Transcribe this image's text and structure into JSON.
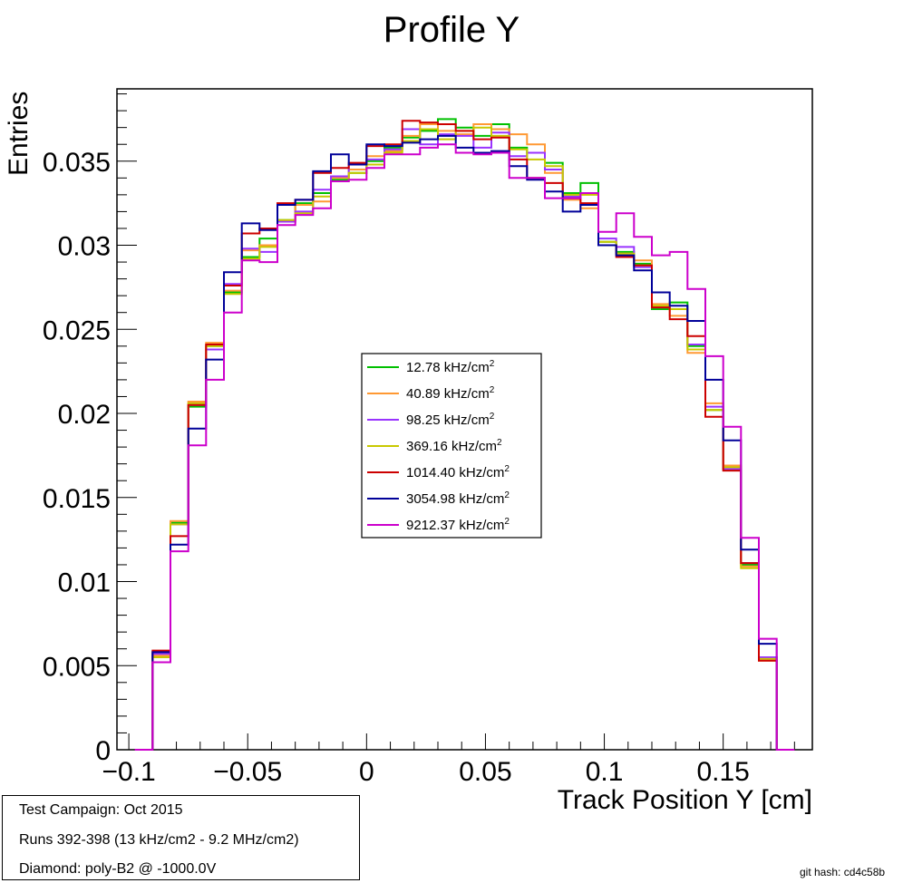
{
  "chart_data": {
    "type": "line",
    "title": "Profile Y",
    "xlabel": "Track Position Y [cm]",
    "ylabel": "Entries",
    "xlim": [
      -0.105,
      0.1875
    ],
    "ylim": [
      0,
      0.0393
    ],
    "x_ticks": [
      -0.1,
      -0.05,
      0,
      0.05,
      0.1,
      0.15
    ],
    "x_tick_labels": [
      "−0.1",
      "−0.05",
      "0",
      "0.05",
      "0.1",
      "0.15"
    ],
    "y_ticks": [
      0,
      0.005,
      0.01,
      0.015,
      0.02,
      0.025,
      0.03,
      0.035
    ],
    "y_tick_labels": [
      "0",
      "0.005",
      "0.01",
      "0.015",
      "0.02",
      "0.025",
      "0.03",
      "0.035"
    ],
    "legend_position": "center",
    "grid": false,
    "bin_edges": [
      -0.0975,
      -0.09,
      -0.0825,
      -0.075,
      -0.0675,
      -0.06,
      -0.0525,
      -0.045,
      -0.0375,
      -0.03,
      -0.0225,
      -0.015,
      -0.0075,
      0,
      0.0075,
      0.015,
      0.0225,
      0.03,
      0.0375,
      0.045,
      0.0525,
      0.06,
      0.0675,
      0.075,
      0.0825,
      0.09,
      0.0975,
      0.105,
      0.1125,
      0.12,
      0.1275,
      0.135,
      0.1425,
      0.15,
      0.1575,
      0.165,
      0.1725,
      0.18
    ],
    "series": [
      {
        "name": "12.78 kHz/cm",
        "name_sup": "2",
        "color": "#00c000",
        "values": [
          0,
          0.0058,
          0.0135,
          0.0204,
          0.024,
          0.0272,
          0.0293,
          0.0304,
          0.0315,
          0.0325,
          0.0331,
          0.0339,
          0.0343,
          0.035,
          0.0358,
          0.0364,
          0.0368,
          0.0375,
          0.037,
          0.0365,
          0.0372,
          0.0358,
          0.0355,
          0.0349,
          0.0331,
          0.0337,
          0.0302,
          0.0296,
          0.0289,
          0.0262,
          0.0266,
          0.024,
          0.0202,
          0.0167,
          0.011,
          0.0055,
          0
        ]
      },
      {
        "name": "40.89 kHz/cm",
        "name_sup": "2",
        "color": "#ff9933",
        "values": [
          0,
          0.0056,
          0.0136,
          0.0207,
          0.0242,
          0.0273,
          0.0297,
          0.03,
          0.0314,
          0.0324,
          0.0326,
          0.034,
          0.0345,
          0.0353,
          0.0356,
          0.0365,
          0.0372,
          0.0368,
          0.0366,
          0.0372,
          0.0369,
          0.0366,
          0.036,
          0.0343,
          0.0327,
          0.0322,
          0.03,
          0.0295,
          0.0291,
          0.0265,
          0.0258,
          0.0236,
          0.0206,
          0.0169,
          0.0109,
          0.0053,
          0
        ]
      },
      {
        "name": "98.25 kHz/cm",
        "name_sup": "2",
        "color": "#9933ff",
        "values": [
          0,
          0.0057,
          0.0134,
          0.0205,
          0.0238,
          0.0277,
          0.0298,
          0.0296,
          0.0314,
          0.032,
          0.0333,
          0.0341,
          0.0348,
          0.0351,
          0.0357,
          0.0369,
          0.036,
          0.0366,
          0.0365,
          0.0358,
          0.0367,
          0.0353,
          0.0355,
          0.0345,
          0.0329,
          0.0331,
          0.0304,
          0.0299,
          0.0287,
          0.0263,
          0.0262,
          0.0241,
          0.0204,
          0.0167,
          0.0111,
          0.0055,
          0
        ]
      },
      {
        "name": "369.16 kHz/cm",
        "name_sup": "2",
        "color": "#c8c800",
        "values": [
          0,
          0.0055,
          0.0134,
          0.0206,
          0.024,
          0.0271,
          0.0292,
          0.0299,
          0.0315,
          0.0319,
          0.0329,
          0.0338,
          0.0343,
          0.0348,
          0.0355,
          0.0362,
          0.0369,
          0.0363,
          0.0368,
          0.037,
          0.0365,
          0.0357,
          0.0351,
          0.0347,
          0.033,
          0.033,
          0.0302,
          0.0295,
          0.0288,
          0.0264,
          0.0262,
          0.0238,
          0.0202,
          0.0168,
          0.0108,
          0.0054,
          0
        ]
      },
      {
        "name": "1014.40 kHz/cm",
        "name_sup": "2",
        "color": "#cc0000",
        "values": [
          0,
          0.0059,
          0.0127,
          0.0205,
          0.0241,
          0.0276,
          0.0307,
          0.031,
          0.0325,
          0.0327,
          0.0343,
          0.0346,
          0.0349,
          0.0359,
          0.036,
          0.0374,
          0.0373,
          0.0372,
          0.0368,
          0.0363,
          0.0364,
          0.0351,
          0.034,
          0.0337,
          0.0328,
          0.0325,
          0.03,
          0.0293,
          0.0288,
          0.0263,
          0.0256,
          0.0246,
          0.0198,
          0.0166,
          0.0111,
          0.0053,
          0
        ]
      },
      {
        "name": "3054.98 kHz/cm",
        "name_sup": "2",
        "color": "#000099",
        "values": [
          0,
          0.0058,
          0.0122,
          0.0191,
          0.0232,
          0.0284,
          0.0313,
          0.0309,
          0.0324,
          0.0327,
          0.0344,
          0.0354,
          0.0348,
          0.036,
          0.0359,
          0.0361,
          0.0363,
          0.0365,
          0.0358,
          0.0355,
          0.0356,
          0.0347,
          0.0339,
          0.0332,
          0.032,
          0.0324,
          0.03,
          0.0294,
          0.0285,
          0.0272,
          0.0264,
          0.0255,
          0.022,
          0.0184,
          0.0119,
          0.0063,
          0
        ]
      },
      {
        "name": "9212.37 kHz/cm",
        "name_sup": "2",
        "color": "#cc00cc",
        "values": [
          0,
          0.0052,
          0.0118,
          0.0181,
          0.022,
          0.026,
          0.0291,
          0.029,
          0.0312,
          0.0318,
          0.0322,
          0.0338,
          0.0339,
          0.0346,
          0.0354,
          0.0354,
          0.0358,
          0.036,
          0.0355,
          0.0354,
          0.0355,
          0.034,
          0.034,
          0.0328,
          0.0328,
          0.0331,
          0.0308,
          0.0319,
          0.0305,
          0.0294,
          0.0296,
          0.0274,
          0.0234,
          0.0192,
          0.0126,
          0.0066,
          0
        ]
      }
    ]
  },
  "info_box": {
    "line1": "Test Campaign: Oct 2015",
    "line2": "Runs 392-398 (13 kHz/cm2 - 9.2 MHz/cm2)",
    "line3": "Diamond: poly-B2 @ -1000.0V"
  },
  "git_hash": "git hash: cd4c58b"
}
